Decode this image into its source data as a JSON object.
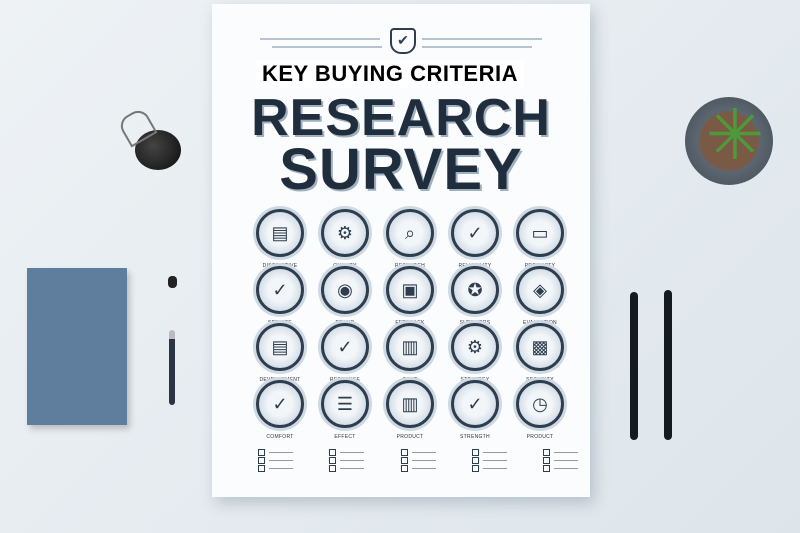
{
  "poster": {
    "subtitle": "KEY BUYING CRITERIA",
    "title_line1": "RESEARCH",
    "title_line2": "SURVEY",
    "header_icon": "shield-check-icon",
    "grid": [
      [
        {
          "icon": "building-document-icon",
          "label": "DISCRIPTIVE"
        },
        {
          "icon": "gears-icon",
          "label": "QUALITY"
        },
        {
          "icon": "magnifier-icon",
          "label": "RESEARCH"
        },
        {
          "icon": "leaf-check-icon",
          "label": "RELIABILITY"
        },
        {
          "icon": "document-icon",
          "label": "PRODUCTY"
        }
      ],
      [
        {
          "icon": "check-seal-icon",
          "label": "SERVICE"
        },
        {
          "icon": "target-icon",
          "label": "BRAND"
        },
        {
          "icon": "file-icon",
          "label": "FEEDBACK"
        },
        {
          "icon": "badge-icon",
          "label": "SUPPLIERS"
        },
        {
          "icon": "cube-icon",
          "label": "EVALUATION"
        }
      ],
      [
        {
          "icon": "clipboard-icon",
          "label": "DEVELOPMENT"
        },
        {
          "icon": "checkmark-icon",
          "label": "RESPONSE"
        },
        {
          "icon": "bar-chart-icon",
          "label": "COST"
        },
        {
          "icon": "user-gear-icon",
          "label": "STRATEGY"
        },
        {
          "icon": "lock-icon",
          "label": "SECURITY"
        }
      ],
      [
        {
          "icon": "checkmark-icon",
          "label": "COMFORT"
        },
        {
          "icon": "list-icon",
          "label": "EFFECT"
        },
        {
          "icon": "bar-chart-icon",
          "label": "PRODUCT"
        },
        {
          "icon": "check-chart-icon",
          "label": "STRENGTH"
        },
        {
          "icon": "clock-icon",
          "label": "PRODUCT"
        }
      ]
    ]
  },
  "colors": {
    "background": "#e4eaef",
    "title": "#1f2d3d",
    "notebook": "#5f7d9c"
  }
}
